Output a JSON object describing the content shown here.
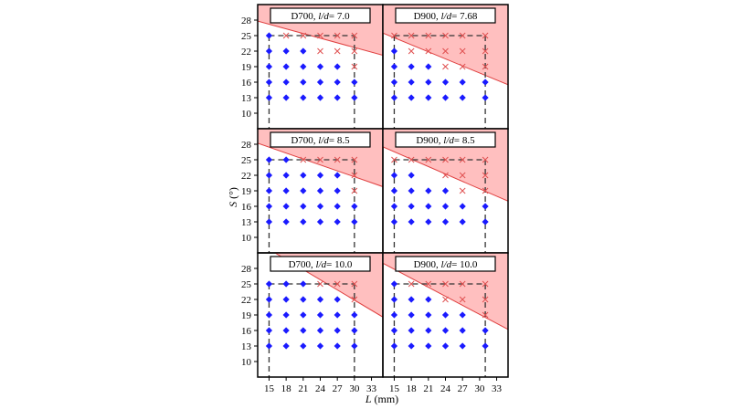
{
  "chart_data": {
    "type": "scatter",
    "xlabel_var": "L",
    "xlabel_unit": " (mm)",
    "ylabel_var": "S",
    "ylabel_unit": " (°)",
    "xlim": [
      13,
      35
    ],
    "ylim": [
      7,
      31
    ],
    "xticks": [
      15,
      18,
      21,
      24,
      27,
      30,
      33
    ],
    "yticks": [
      10,
      13,
      16,
      19,
      22,
      25,
      28
    ],
    "colors": {
      "feasible": "#1a1aff",
      "infeasible": "#e05050",
      "region": "#ffbfbf",
      "region_edge": "#e04040"
    },
    "legend": [],
    "panels": [
      {
        "title_prefix": "D700, ",
        "title_var": "l/d",
        "title_suffix": "= 7.0",
        "region_line": [
          [
            13,
            27.8
          ],
          [
            35,
            21.2
          ]
        ],
        "box": {
          "x": [
            15,
            30
          ],
          "y": [
            10,
            25
          ]
        },
        "feasible": [
          [
            15,
            25
          ],
          [
            15,
            22
          ],
          [
            18,
            22
          ],
          [
            21,
            22
          ],
          [
            15,
            19
          ],
          [
            18,
            19
          ],
          [
            21,
            19
          ],
          [
            24,
            19
          ],
          [
            27,
            19
          ],
          [
            15,
            16
          ],
          [
            18,
            16
          ],
          [
            21,
            16
          ],
          [
            24,
            16
          ],
          [
            27,
            16
          ],
          [
            30,
            16
          ],
          [
            15,
            13
          ],
          [
            18,
            13
          ],
          [
            21,
            13
          ],
          [
            24,
            13
          ],
          [
            27,
            13
          ],
          [
            30,
            13
          ]
        ],
        "infeasible": [
          [
            18,
            25
          ],
          [
            21,
            25
          ],
          [
            24,
            25
          ],
          [
            27,
            25
          ],
          [
            30,
            25
          ],
          [
            24,
            22
          ],
          [
            27,
            22
          ],
          [
            30,
            22
          ],
          [
            30,
            19
          ]
        ]
      },
      {
        "title_prefix": "D900, ",
        "title_var": "l/d",
        "title_suffix": "= 7.68",
        "region_line": [
          [
            13,
            25.5
          ],
          [
            35,
            15.5
          ]
        ],
        "box": {
          "x": [
            15,
            31
          ],
          "y": [
            10,
            25
          ]
        },
        "feasible": [
          [
            15,
            22
          ],
          [
            15,
            19
          ],
          [
            18,
            19
          ],
          [
            21,
            19
          ],
          [
            15,
            16
          ],
          [
            18,
            16
          ],
          [
            21,
            16
          ],
          [
            24,
            16
          ],
          [
            27,
            16
          ],
          [
            31,
            16
          ],
          [
            15,
            13
          ],
          [
            18,
            13
          ],
          [
            21,
            13
          ],
          [
            24,
            13
          ],
          [
            27,
            13
          ],
          [
            31,
            13
          ]
        ],
        "infeasible": [
          [
            15,
            25
          ],
          [
            18,
            25
          ],
          [
            21,
            25
          ],
          [
            24,
            25
          ],
          [
            27,
            25
          ],
          [
            31,
            25
          ],
          [
            18,
            22
          ],
          [
            21,
            22
          ],
          [
            24,
            22
          ],
          [
            27,
            22
          ],
          [
            31,
            22
          ],
          [
            24,
            19
          ],
          [
            27,
            19
          ],
          [
            31,
            19
          ]
        ]
      },
      {
        "title_prefix": "D700, ",
        "title_var": "l/d",
        "title_suffix": "= 8.5",
        "region_line": [
          [
            13,
            28.2
          ],
          [
            35,
            19.8
          ]
        ],
        "box": {
          "x": [
            15,
            30
          ],
          "y": [
            10,
            25
          ]
        },
        "feasible": [
          [
            15,
            25
          ],
          [
            18,
            25
          ],
          [
            15,
            22
          ],
          [
            18,
            22
          ],
          [
            21,
            22
          ],
          [
            24,
            22
          ],
          [
            27,
            22
          ],
          [
            15,
            19
          ],
          [
            18,
            19
          ],
          [
            21,
            19
          ],
          [
            24,
            19
          ],
          [
            27,
            19
          ],
          [
            15,
            16
          ],
          [
            18,
            16
          ],
          [
            21,
            16
          ],
          [
            24,
            16
          ],
          [
            27,
            16
          ],
          [
            30,
            16
          ],
          [
            15,
            13
          ],
          [
            18,
            13
          ],
          [
            21,
            13
          ],
          [
            24,
            13
          ],
          [
            27,
            13
          ],
          [
            30,
            13
          ]
        ],
        "infeasible": [
          [
            21,
            25
          ],
          [
            24,
            25
          ],
          [
            27,
            25
          ],
          [
            30,
            25
          ],
          [
            30,
            22
          ],
          [
            30,
            19
          ]
        ]
      },
      {
        "title_prefix": "D900, ",
        "title_var": "l/d",
        "title_suffix": "= 8.5",
        "region_line": [
          [
            13,
            27.5
          ],
          [
            35,
            17.0
          ]
        ],
        "box": {
          "x": [
            15,
            31
          ],
          "y": [
            10,
            25
          ]
        },
        "feasible": [
          [
            15,
            22
          ],
          [
            18,
            22
          ],
          [
            15,
            19
          ],
          [
            18,
            19
          ],
          [
            21,
            19
          ],
          [
            24,
            19
          ],
          [
            15,
            16
          ],
          [
            18,
            16
          ],
          [
            21,
            16
          ],
          [
            24,
            16
          ],
          [
            27,
            16
          ],
          [
            31,
            16
          ],
          [
            15,
            13
          ],
          [
            18,
            13
          ],
          [
            21,
            13
          ],
          [
            24,
            13
          ],
          [
            27,
            13
          ],
          [
            31,
            13
          ]
        ],
        "infeasible": [
          [
            15,
            25
          ],
          [
            18,
            25
          ],
          [
            21,
            25
          ],
          [
            24,
            25
          ],
          [
            27,
            25
          ],
          [
            31,
            25
          ],
          [
            24,
            22
          ],
          [
            27,
            22
          ],
          [
            31,
            22
          ],
          [
            27,
            19
          ],
          [
            31,
            19
          ]
        ]
      },
      {
        "title_prefix": "D700, ",
        "title_var": "l/d",
        "title_suffix": "= 10.0",
        "region_line": [
          [
            13,
            33.0
          ],
          [
            35,
            18.6
          ]
        ],
        "box": {
          "x": [
            15,
            30
          ],
          "y": [
            10,
            25
          ]
        },
        "feasible": [
          [
            15,
            25
          ],
          [
            18,
            25
          ],
          [
            21,
            25
          ],
          [
            15,
            22
          ],
          [
            18,
            22
          ],
          [
            21,
            22
          ],
          [
            24,
            22
          ],
          [
            27,
            22
          ],
          [
            15,
            19
          ],
          [
            18,
            19
          ],
          [
            21,
            19
          ],
          [
            24,
            19
          ],
          [
            27,
            19
          ],
          [
            30,
            19
          ],
          [
            15,
            16
          ],
          [
            18,
            16
          ],
          [
            21,
            16
          ],
          [
            24,
            16
          ],
          [
            27,
            16
          ],
          [
            30,
            16
          ],
          [
            15,
            13
          ],
          [
            18,
            13
          ],
          [
            21,
            13
          ],
          [
            24,
            13
          ],
          [
            27,
            13
          ],
          [
            30,
            13
          ]
        ],
        "infeasible": [
          [
            24,
            25
          ],
          [
            27,
            25
          ],
          [
            30,
            25
          ],
          [
            30,
            22
          ]
        ]
      },
      {
        "title_prefix": "D900, ",
        "title_var": "l/d",
        "title_suffix": "= 10.0",
        "region_line": [
          [
            13,
            29.0
          ],
          [
            35,
            16.2
          ]
        ],
        "box": {
          "x": [
            15,
            31
          ],
          "y": [
            10,
            25
          ]
        },
        "feasible": [
          [
            15,
            25
          ],
          [
            15,
            22
          ],
          [
            18,
            22
          ],
          [
            21,
            22
          ],
          [
            15,
            19
          ],
          [
            18,
            19
          ],
          [
            21,
            19
          ],
          [
            24,
            19
          ],
          [
            27,
            19
          ],
          [
            15,
            16
          ],
          [
            18,
            16
          ],
          [
            21,
            16
          ],
          [
            24,
            16
          ],
          [
            27,
            16
          ],
          [
            31,
            16
          ],
          [
            15,
            13
          ],
          [
            18,
            13
          ],
          [
            21,
            13
          ],
          [
            24,
            13
          ],
          [
            27,
            13
          ],
          [
            31,
            13
          ]
        ],
        "infeasible": [
          [
            18,
            25
          ],
          [
            21,
            25
          ],
          [
            24,
            25
          ],
          [
            27,
            25
          ],
          [
            31,
            25
          ],
          [
            24,
            22
          ],
          [
            27,
            22
          ],
          [
            31,
            22
          ],
          [
            31,
            19
          ]
        ]
      }
    ]
  }
}
